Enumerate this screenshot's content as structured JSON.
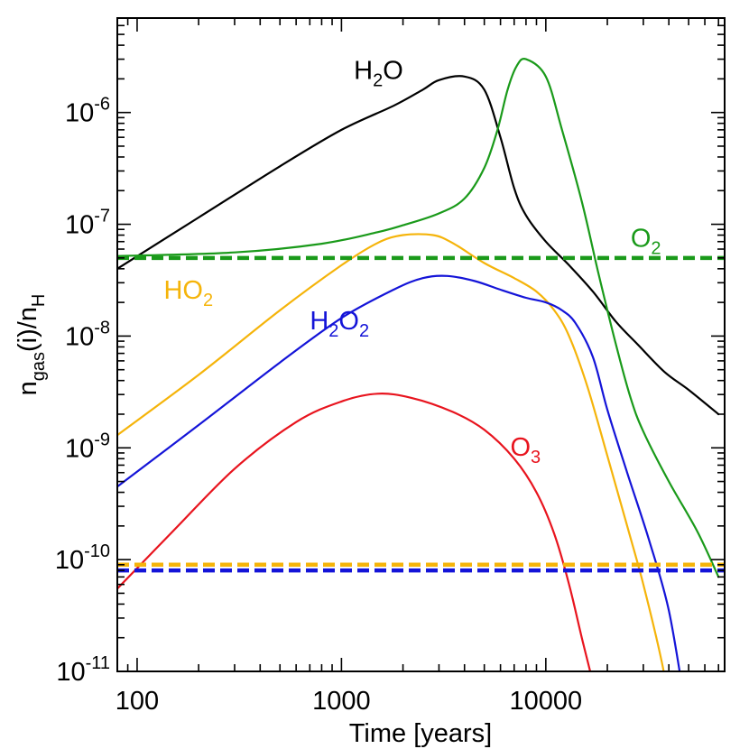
{
  "chart_data": {
    "type": "line",
    "xscale": "log",
    "yscale": "log",
    "xlim": [
      80,
      75000
    ],
    "ylim": [
      1e-11,
      7e-06
    ],
    "xlabel": "Time [years]",
    "ylabel": {
      "base": "n",
      "sub1": "gas",
      "mid": "(i)/n",
      "sub2": "H"
    },
    "xticks": [
      {
        "value": 100,
        "label": "100"
      },
      {
        "value": 1000,
        "label": "1000"
      },
      {
        "value": 10000,
        "label": "10000"
      }
    ],
    "yticks": [
      {
        "value": 1e-06,
        "base": "10",
        "exp": "-6"
      },
      {
        "value": 1e-07,
        "base": "10",
        "exp": "-7"
      },
      {
        "value": 1e-08,
        "base": "10",
        "exp": "-8"
      },
      {
        "value": 1e-09,
        "base": "10",
        "exp": "-9"
      },
      {
        "value": 1e-10,
        "base": "10",
        "exp": "-10"
      },
      {
        "value": 1e-11,
        "base": "10",
        "exp": "-11"
      }
    ],
    "grid": false,
    "series": [
      {
        "name": "H2O",
        "label": {
          "parts": [
            {
              "t": "H"
            },
            {
              "t": "2",
              "sub": true
            },
            {
              "t": "O"
            }
          ],
          "at": [
            1150,
            2e-06
          ]
        },
        "color": "#000000",
        "points": [
          [
            80,
            4e-08
          ],
          [
            200,
            1.15e-07
          ],
          [
            500,
            3.3e-07
          ],
          [
            1000,
            7e-07
          ],
          [
            1800,
            1.15e-06
          ],
          [
            2500,
            1.6e-06
          ],
          [
            3000,
            1.95e-06
          ],
          [
            4000,
            2.1e-06
          ],
          [
            5000,
            1.6e-06
          ],
          [
            6000,
            6e-07
          ],
          [
            7000,
            2.1e-07
          ],
          [
            8000,
            1.2e-07
          ],
          [
            10000,
            7e-08
          ],
          [
            13000,
            4.3e-08
          ],
          [
            17000,
            2.5e-08
          ],
          [
            22000,
            1.35e-08
          ],
          [
            28000,
            8.5e-09
          ],
          [
            38000,
            4.8e-09
          ],
          [
            50000,
            3.3e-09
          ],
          [
            70000,
            2e-09
          ]
        ]
      },
      {
        "name": "O2",
        "label": {
          "parts": [
            {
              "t": "O"
            },
            {
              "t": "2",
              "sub": true
            }
          ],
          "at": [
            26000,
            6.3e-08
          ]
        },
        "color": "#1a9a1a",
        "points": [
          [
            80,
            5.2e-08
          ],
          [
            300,
            5.6e-08
          ],
          [
            800,
            6.7e-08
          ],
          [
            1500,
            8.5e-08
          ],
          [
            2000,
            9.8e-08
          ],
          [
            3000,
            1.25e-07
          ],
          [
            4000,
            1.7e-07
          ],
          [
            5000,
            3.2e-07
          ],
          [
            5800,
            7e-07
          ],
          [
            6500,
            1.6e-06
          ],
          [
            7200,
            2.6e-06
          ],
          [
            8000,
            3e-06
          ],
          [
            10000,
            2.1e-06
          ],
          [
            12000,
            7e-07
          ],
          [
            15000,
            1.6e-07
          ],
          [
            18000,
            3.8e-08
          ],
          [
            22000,
            8.5e-09
          ],
          [
            26000,
            2.8e-09
          ],
          [
            30000,
            1.4e-09
          ],
          [
            40000,
            5e-10
          ],
          [
            55000,
            1.8e-10
          ],
          [
            70000,
            7e-11
          ]
        ]
      },
      {
        "name": "HO2",
        "label": {
          "parts": [
            {
              "t": "HO"
            },
            {
              "t": "2",
              "sub": true
            }
          ],
          "at": [
            135,
            2.15e-08
          ]
        },
        "color": "#f5b40a",
        "points": [
          [
            80,
            1.3e-09
          ],
          [
            200,
            4.5e-09
          ],
          [
            500,
            1.7e-08
          ],
          [
            1000,
            4.3e-08
          ],
          [
            1500,
            6.8e-08
          ],
          [
            2000,
            8e-08
          ],
          [
            2800,
            8e-08
          ],
          [
            3500,
            6.8e-08
          ],
          [
            5000,
            4.5e-08
          ],
          [
            7000,
            3.3e-08
          ],
          [
            9000,
            2.5e-08
          ],
          [
            11000,
            1.7e-08
          ],
          [
            13000,
            1e-08
          ],
          [
            16000,
            3.5e-09
          ],
          [
            20000,
            8.5e-10
          ],
          [
            25000,
            2e-10
          ],
          [
            30000,
            6e-11
          ],
          [
            37000,
            1.2e-11
          ],
          [
            40000,
            5e-12
          ]
        ]
      },
      {
        "name": "H2O2",
        "label": {
          "parts": [
            {
              "t": "H"
            },
            {
              "t": "2",
              "sub": true
            },
            {
              "t": "O"
            },
            {
              "t": "2",
              "sub": true
            }
          ],
          "at": [
            700,
            1.15e-08
          ]
        },
        "color": "#1414d8",
        "points": [
          [
            80,
            4.5e-10
          ],
          [
            200,
            1.6e-09
          ],
          [
            500,
            5.8e-09
          ],
          [
            1000,
            1.45e-08
          ],
          [
            1800,
            2.6e-08
          ],
          [
            2500,
            3.3e-08
          ],
          [
            3300,
            3.45e-08
          ],
          [
            4500,
            3.1e-08
          ],
          [
            6000,
            2.6e-08
          ],
          [
            8000,
            2.2e-08
          ],
          [
            10000,
            2e-08
          ],
          [
            12000,
            1.7e-08
          ],
          [
            14000,
            1.3e-08
          ],
          [
            17000,
            6.5e-09
          ],
          [
            20000,
            2.2e-09
          ],
          [
            25000,
            6e-10
          ],
          [
            32000,
            1.5e-10
          ],
          [
            40000,
            3.5e-11
          ],
          [
            48000,
            5e-12
          ]
        ]
      },
      {
        "name": "O3",
        "label": {
          "parts": [
            {
              "t": "O"
            },
            {
              "t": "3",
              "sub": true
            }
          ],
          "at": [
            6700,
            8.5e-10
          ]
        },
        "color": "#e8141e",
        "points": [
          [
            80,
            5.5e-11
          ],
          [
            150,
            1.8e-10
          ],
          [
            300,
            6.5e-10
          ],
          [
            600,
            1.7e-09
          ],
          [
            1000,
            2.6e-09
          ],
          [
            1500,
            3.05e-09
          ],
          [
            2200,
            2.8e-09
          ],
          [
            3500,
            2.1e-09
          ],
          [
            5000,
            1.45e-09
          ],
          [
            7000,
            8e-10
          ],
          [
            9000,
            4e-10
          ],
          [
            11000,
            1.7e-10
          ],
          [
            13000,
            6e-11
          ],
          [
            15000,
            2e-11
          ],
          [
            17000,
            8e-12
          ]
        ]
      }
    ],
    "reference_lines": [
      {
        "name": "O2-reference",
        "value": 5e-08,
        "color": "#1a9a1a",
        "style": "dashed"
      },
      {
        "name": "HO2-reference",
        "value": 9e-11,
        "color": "#f5b40a",
        "style": "dashed"
      },
      {
        "name": "H2O2-reference",
        "value": 8e-11,
        "color": "#1414d8",
        "style": "dashed"
      }
    ]
  }
}
